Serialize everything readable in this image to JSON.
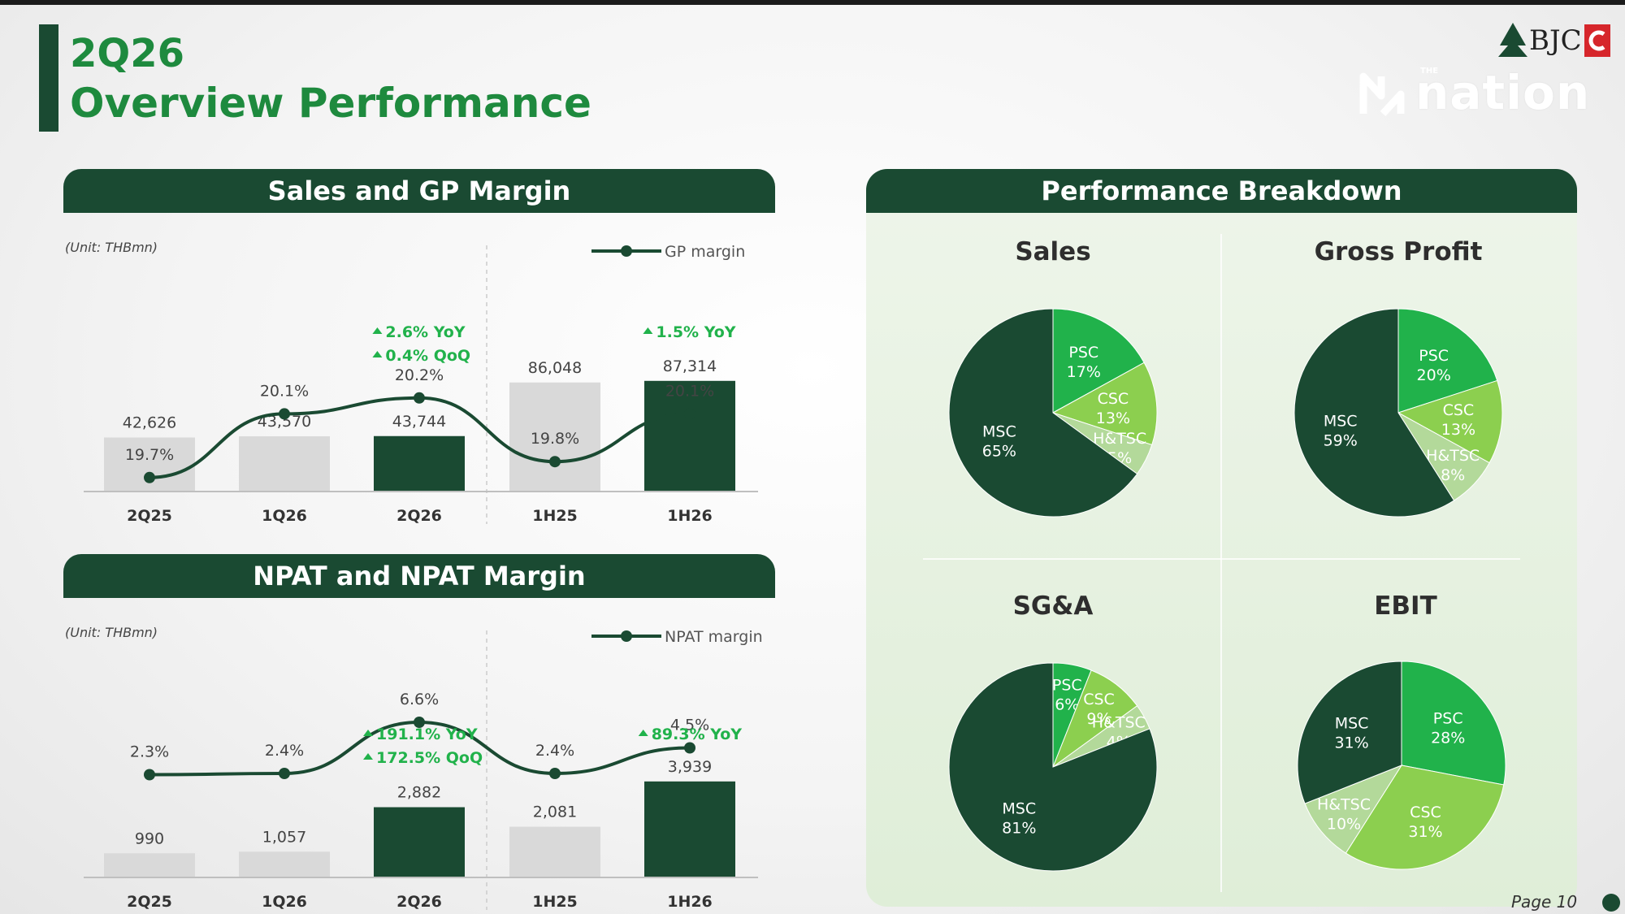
{
  "header": {
    "title_line1": "2Q26",
    "title_line2": "Overview Performance"
  },
  "logos": {
    "bjc": "BJC",
    "nation_the": "THE",
    "nation": "nation"
  },
  "footer": {
    "page": "Page 10"
  },
  "colors": {
    "dark_green": "#1a4a32",
    "title_green": "#1e8a3e",
    "bright_green": "#21b24b",
    "light_green": "#8ccf4f",
    "pale_green": "#b3d99a",
    "grey_bar": "#d9d9d9"
  },
  "sales_panel": {
    "heading": "Sales and GP Margin",
    "unit": "(Unit: THBmn)",
    "legend": "GP margin",
    "badges": [
      {
        "text": "2.6% YoY",
        "x": "2Q26"
      },
      {
        "text": "0.4% QoQ",
        "x": "2Q26"
      },
      {
        "text": "1.5% YoY",
        "x": "1H26"
      }
    ]
  },
  "npat_panel": {
    "heading": "NPAT and NPAT Margin",
    "unit": "(Unit: THBmn)",
    "legend": "NPAT margin",
    "badges": [
      {
        "text": "191.1% YoY",
        "x": "2Q26"
      },
      {
        "text": "172.5% QoQ",
        "x": "2Q26"
      },
      {
        "text": "89.3% YoY",
        "x": "1H26"
      }
    ]
  },
  "breakdown_panel": {
    "heading": "Performance Breakdown"
  },
  "chart_data": [
    {
      "type": "bar",
      "title": "Sales and GP Margin",
      "unit": "(Unit: THBmn)",
      "categories": [
        "2Q25",
        "1Q26",
        "2Q26",
        "1H25",
        "1H26"
      ],
      "bar_labels": [
        "42,626",
        "43,570",
        "43,744",
        "86,048",
        "87,314"
      ],
      "highlight": [
        false,
        false,
        true,
        false,
        true
      ],
      "series": [
        {
          "name": "Sales",
          "type": "bar",
          "values": [
            42626,
            43570,
            43744,
            86048,
            87314
          ]
        },
        {
          "name": "GP margin",
          "type": "line",
          "values": [
            19.7,
            20.1,
            20.2,
            19.8,
            20.1
          ],
          "labels": [
            "19.7%",
            "20.1%",
            "20.2%",
            "19.8%",
            "20.1%"
          ]
        }
      ],
      "ylim": [
        0,
        100000
      ],
      "line_ylim": [
        17,
        22
      ]
    },
    {
      "type": "bar",
      "title": "NPAT and NPAT Margin",
      "unit": "(Unit: THBmn)",
      "categories": [
        "2Q25",
        "1Q26",
        "2Q26",
        "1H25",
        "1H26"
      ],
      "bar_labels": [
        "990",
        "1,057",
        "2,882",
        "2,081",
        "3,939"
      ],
      "highlight": [
        false,
        false,
        true,
        false,
        true
      ],
      "series": [
        {
          "name": "NPAT",
          "type": "bar",
          "values": [
            990,
            1057,
            2882,
            2081,
            3939
          ]
        },
        {
          "name": "NPAT margin",
          "type": "line",
          "values": [
            2.3,
            2.4,
            6.6,
            2.4,
            4.5
          ],
          "labels": [
            "2.3%",
            "2.4%",
            "6.6%",
            "2.4%",
            "4.5%"
          ]
        }
      ],
      "ylim": [
        0,
        4600
      ],
      "line_ylim": [
        -12,
        12
      ]
    },
    {
      "type": "pie",
      "title": "Sales",
      "slices": [
        {
          "name": "PSC",
          "value": 17,
          "label": "17%"
        },
        {
          "name": "CSC",
          "value": 13,
          "label": "13%"
        },
        {
          "name": "H&TSC",
          "value": 5,
          "label": "5%"
        },
        {
          "name": "MSC",
          "value": 65,
          "label": "65%"
        }
      ]
    },
    {
      "type": "pie",
      "title": "Gross Profit",
      "slices": [
        {
          "name": "PSC",
          "value": 20,
          "label": "20%"
        },
        {
          "name": "CSC",
          "value": 13,
          "label": "13%"
        },
        {
          "name": "H&TSC",
          "value": 8,
          "label": "8%"
        },
        {
          "name": "MSC",
          "value": 59,
          "label": "59%"
        }
      ]
    },
    {
      "type": "pie",
      "title": "SG&A",
      "slices": [
        {
          "name": "PSC",
          "value": 6,
          "label": "6%"
        },
        {
          "name": "CSC",
          "value": 9,
          "label": "9%"
        },
        {
          "name": "H&TSC",
          "value": 4,
          "label": "4%"
        },
        {
          "name": "MSC",
          "value": 81,
          "label": "81%"
        }
      ]
    },
    {
      "type": "pie",
      "title": "EBIT",
      "slices": [
        {
          "name": "PSC",
          "value": 28,
          "label": "28%"
        },
        {
          "name": "CSC",
          "value": 31,
          "label": "31%"
        },
        {
          "name": "H&TSC",
          "value": 10,
          "label": "10%"
        },
        {
          "name": "MSC",
          "value": 31,
          "label": "31%"
        }
      ]
    }
  ]
}
